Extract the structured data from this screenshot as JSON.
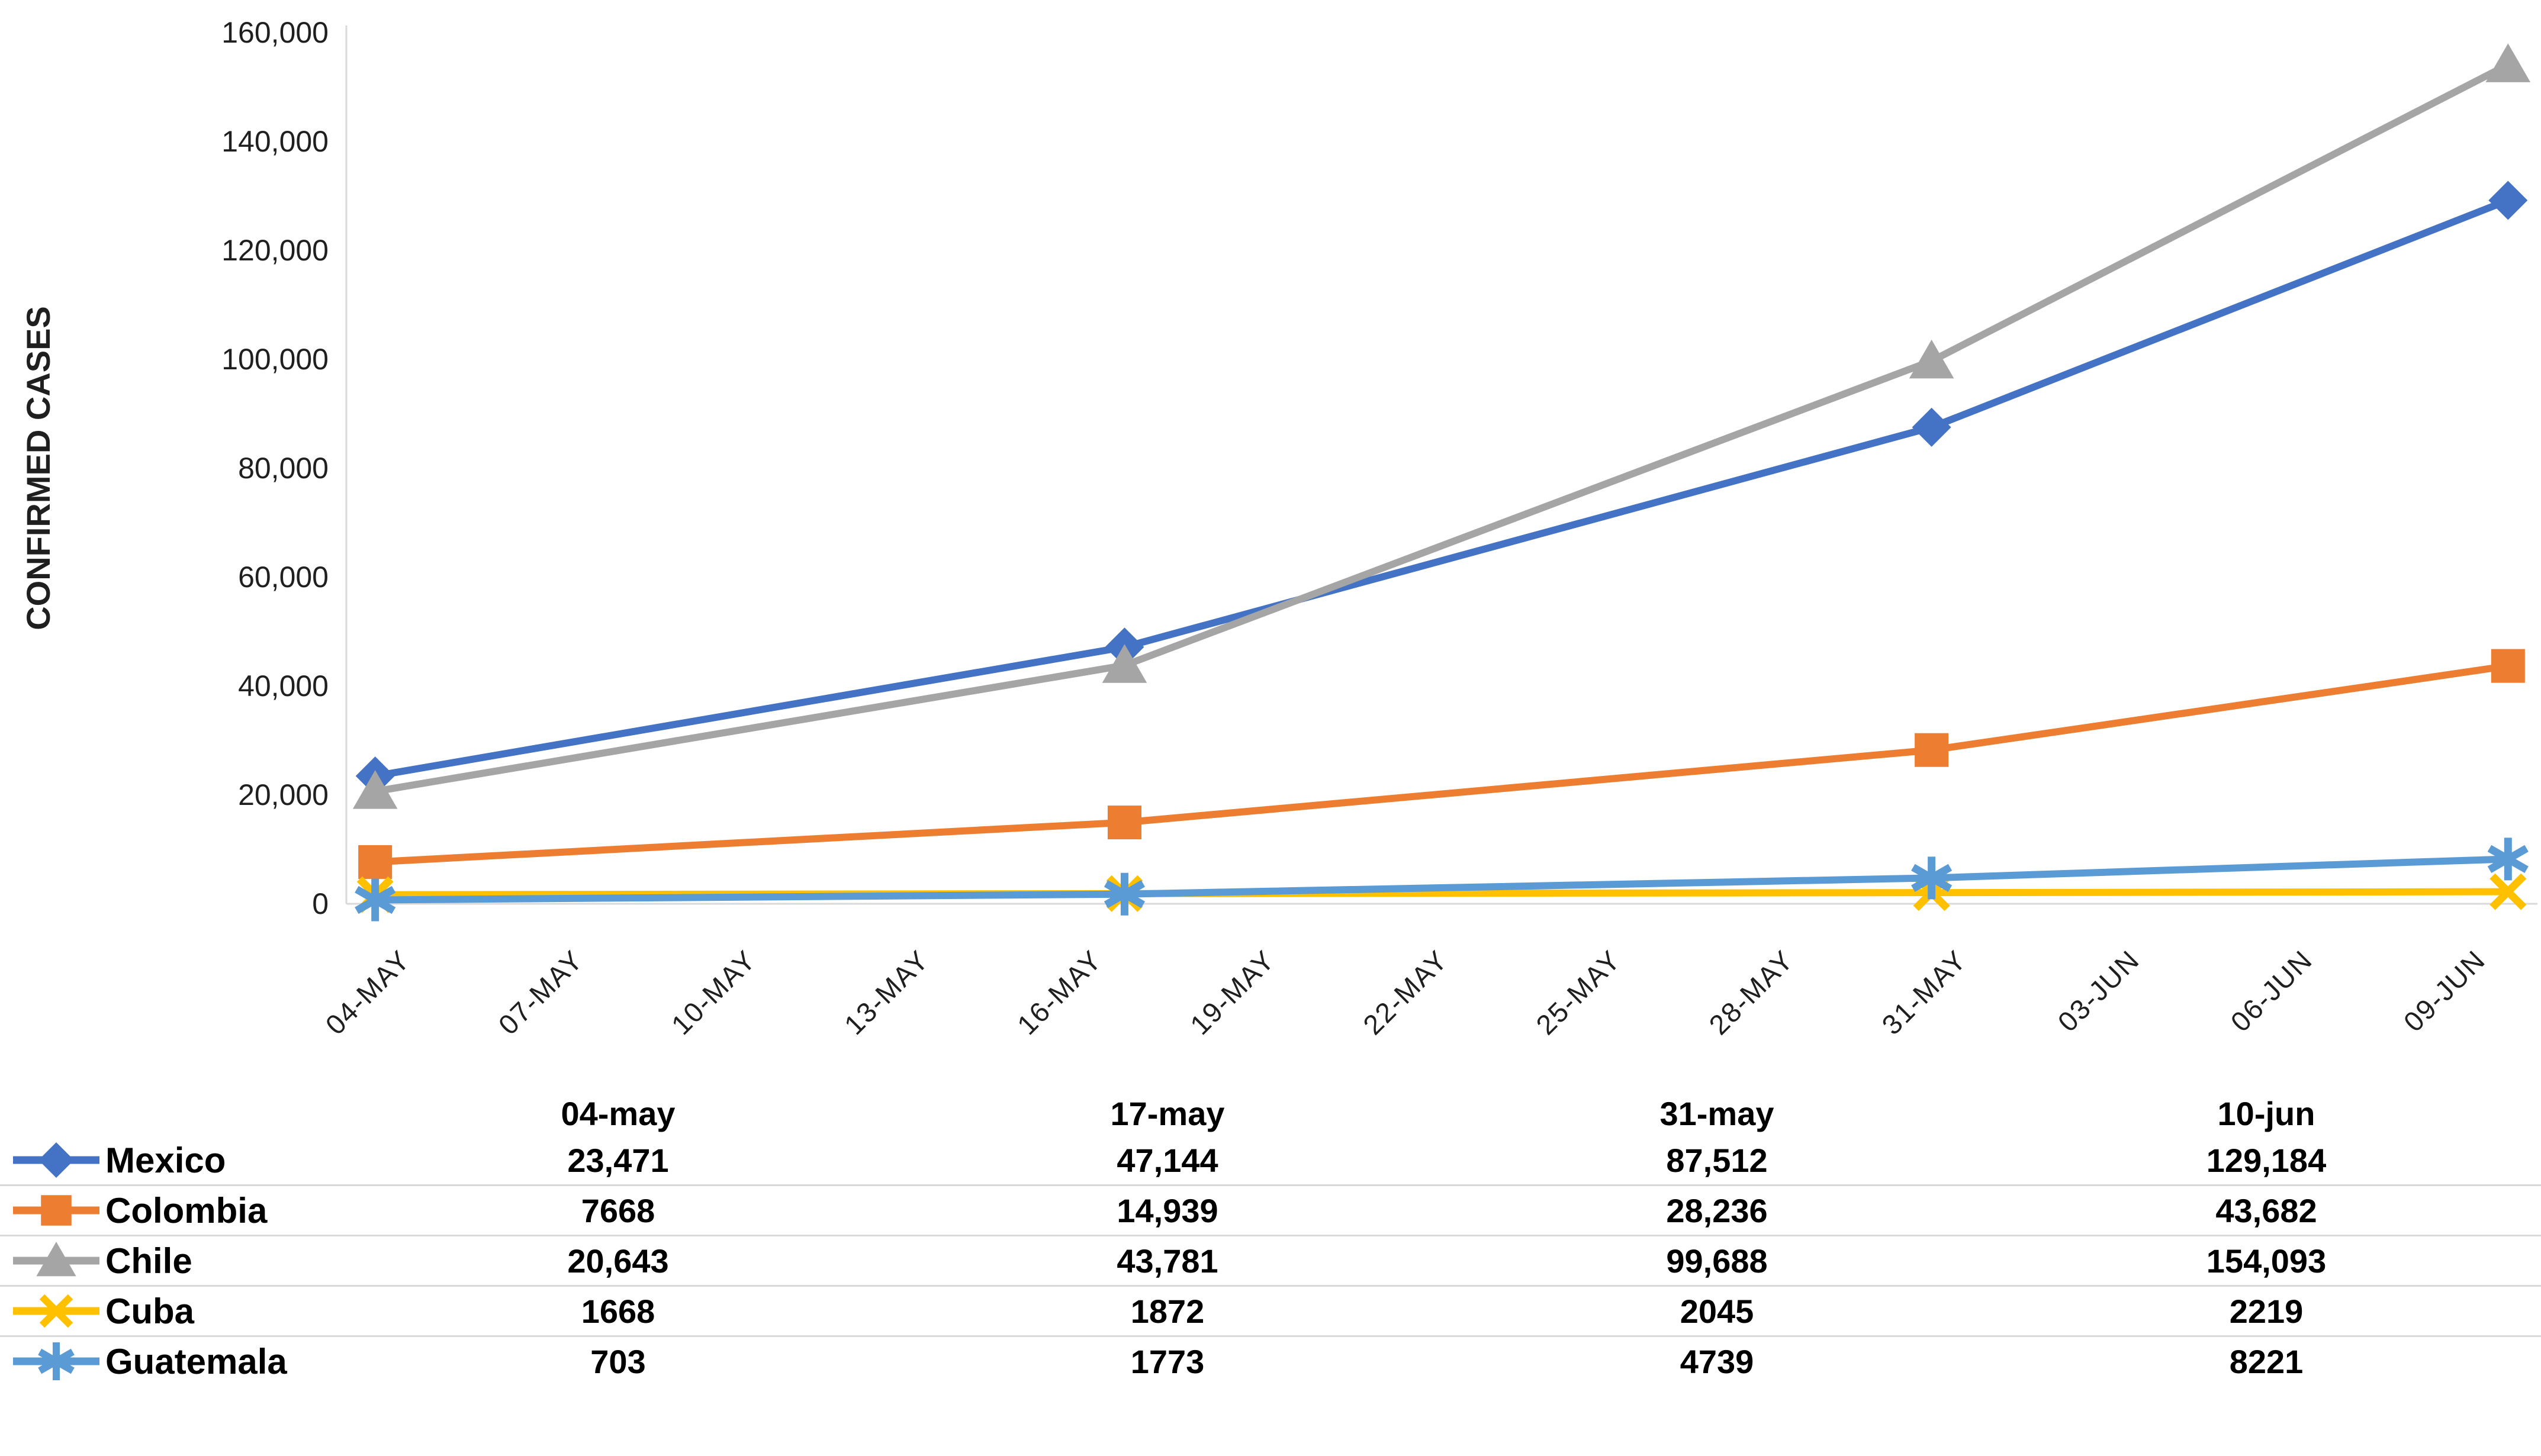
{
  "chart_data": {
    "type": "line",
    "title": "",
    "xlabel": "",
    "ylabel": "CONFIRMED CASES",
    "ylim": [
      0,
      160000
    ],
    "ytick_step": 20000,
    "ytick_labels": [
      "0",
      "20,000",
      "40,000",
      "60,000",
      "80,000",
      "100,000",
      "120,000",
      "140,000",
      "160,000"
    ],
    "xtick_labels": [
      "04-MAY",
      "07-MAY",
      "10-MAY",
      "13-MAY",
      "16-MAY",
      "19-MAY",
      "22-MAY",
      "25-MAY",
      "28-MAY",
      "31-MAY",
      "03-JUN",
      "06-JUN",
      "09-JUN"
    ],
    "xtick_days": [
      0,
      3,
      6,
      9,
      12,
      15,
      18,
      21,
      24,
      27,
      30,
      33,
      36
    ],
    "x_domain_days": 38,
    "grid": false,
    "legend_position": "table-rows-below-left",
    "axis_color": "#d9d9d9",
    "text_color": "#1f1f1f",
    "series": [
      {
        "name": "Mexico",
        "color": "#4472C4",
        "marker": "diamond",
        "days": [
          0,
          13,
          27,
          37
        ],
        "values": [
          23471,
          47144,
          87512,
          129184
        ]
      },
      {
        "name": "Colombia",
        "color": "#ED7D31",
        "marker": "square",
        "days": [
          0,
          13,
          27,
          37
        ],
        "values": [
          7668,
          14939,
          28236,
          43682
        ]
      },
      {
        "name": "Chile",
        "color": "#A5A5A5",
        "marker": "triangle",
        "days": [
          0,
          13,
          27,
          37
        ],
        "values": [
          20643,
          43781,
          99688,
          154093
        ]
      },
      {
        "name": "Cuba",
        "color": "#FFC000",
        "marker": "x",
        "days": [
          0,
          13,
          27,
          37
        ],
        "values": [
          1668,
          1872,
          2045,
          2219
        ]
      },
      {
        "name": "Guatemala",
        "color": "#5B9BD5",
        "marker": "asterisk",
        "days": [
          0,
          13,
          27,
          37
        ],
        "values": [
          703,
          1773,
          4739,
          8221
        ]
      }
    ]
  },
  "table": {
    "headers": [
      "04-may",
      "17-may",
      "31-may",
      "10-jun"
    ],
    "rows": [
      {
        "label": "Mexico",
        "values": [
          "23,471",
          "47,144",
          "87,512",
          "129,184"
        ]
      },
      {
        "label": "Colombia",
        "values": [
          "7668",
          "14,939",
          "28,236",
          "43,682"
        ]
      },
      {
        "label": "Chile",
        "values": [
          "20,643",
          "43,781",
          "99,688",
          "154,093"
        ]
      },
      {
        "label": "Cuba",
        "values": [
          "1668",
          "1872",
          "2045",
          "2219"
        ]
      },
      {
        "label": "Guatemala",
        "values": [
          "703",
          "1773",
          "4739",
          "8221"
        ]
      }
    ]
  }
}
